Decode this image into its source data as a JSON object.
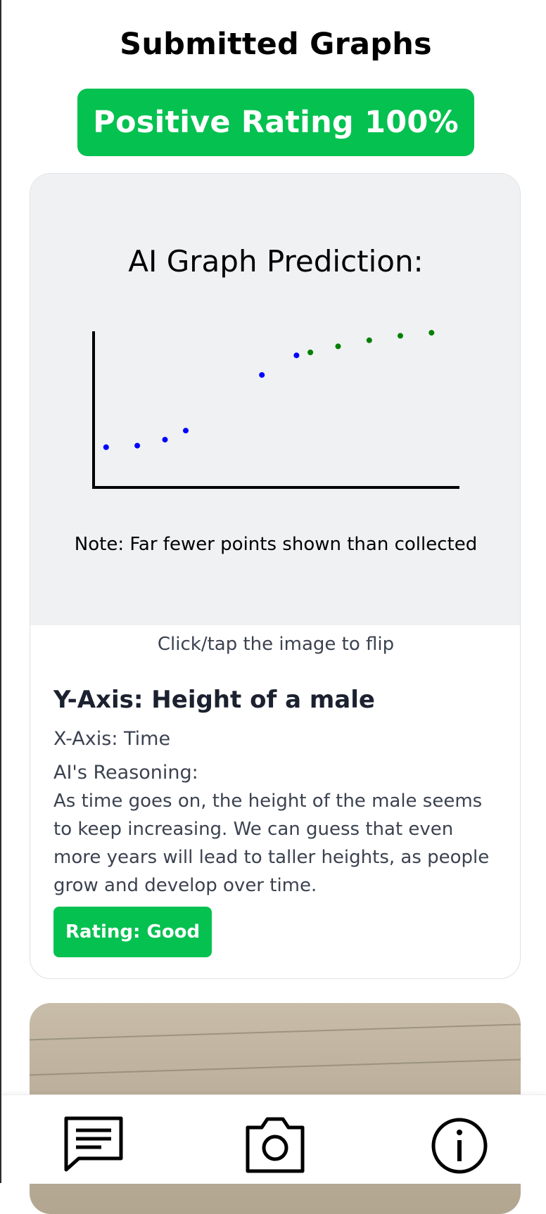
{
  "page": {
    "title": "Submitted Graphs",
    "rating_banner": "Positive Rating 100%"
  },
  "card": {
    "graph_heading": "AI Graph Prediction:",
    "graph_note": "Note: Far fewer points shown than collected",
    "flip_hint": "Click/tap the image to flip",
    "y_axis": "Y-Axis: Height of a male",
    "x_axis": "X-Axis: Time",
    "reasoning_label": "AI's Reasoning:",
    "reasoning_text": "As time goes on, the height of the male seems to keep increasing. We can guess that even more years will lead to taller heights, as people grow and develop over time.",
    "rating": "Rating: Good"
  },
  "chart_data": {
    "type": "scatter",
    "title": "",
    "xlabel": "",
    "ylabel": "",
    "xlim": [
      0,
      100
    ],
    "ylim": [
      0,
      100
    ],
    "grid": false,
    "series": [
      {
        "color": "#0000ff",
        "points": [
          [
            2,
            23
          ],
          [
            11,
            24
          ],
          [
            19,
            28
          ],
          [
            25,
            34
          ],
          [
            47,
            71
          ],
          [
            57,
            84
          ]
        ]
      },
      {
        "color": "#008000",
        "points": [
          [
            61,
            86
          ],
          [
            69,
            90
          ],
          [
            78,
            94
          ],
          [
            87,
            97
          ],
          [
            96,
            99
          ]
        ]
      }
    ]
  },
  "nav": {
    "icons": [
      "chat-icon",
      "camera-icon",
      "info-icon"
    ]
  }
}
